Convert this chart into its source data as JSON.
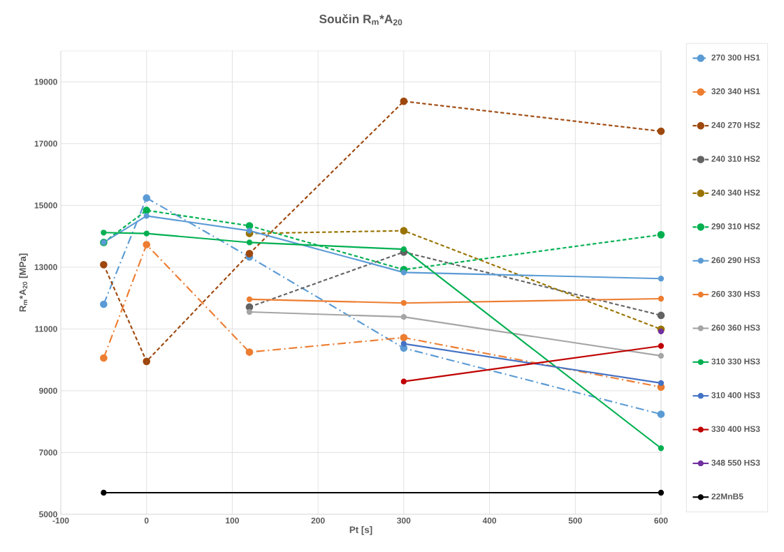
{
  "chart_data": {
    "type": "line",
    "title": "Součin R$_{m}$*A$_{20}$",
    "xlabel": "Pt [s]",
    "ylabel": "R$_{m}$*A$_{20}$ [MPa]",
    "xlim": [
      -100,
      600
    ],
    "ylim": [
      5000,
      20000
    ],
    "xticks": [
      -100,
      0,
      100,
      200,
      300,
      400,
      500,
      600
    ],
    "yticks": [
      5000,
      7000,
      9000,
      11000,
      13000,
      15000,
      17000,
      19000
    ],
    "grid": true,
    "legend": "right",
    "marker": "circle",
    "series": [
      {
        "name": "270 300 HS1",
        "color": "#5b9bd5",
        "line_style": "dashdot",
        "x": [
          -50,
          0,
          120,
          300,
          600
        ],
        "values": [
          11800,
          15240,
          13330,
          10380,
          8240
        ]
      },
      {
        "name": "320 340 HS1",
        "color": "#ed7d31",
        "line_style": "dashdot",
        "x": [
          -50,
          0,
          120,
          300,
          600
        ],
        "values": [
          10060,
          13730,
          10250,
          10720,
          9120
        ]
      },
      {
        "name": "240 270 HS2",
        "color": "#9e480e",
        "line_style": "dashed",
        "x": [
          -50,
          0,
          120,
          300,
          600
        ],
        "values": [
          13080,
          9950,
          13440,
          18370,
          17400
        ]
      },
      {
        "name": "240 310 HS2",
        "color": "#636363",
        "line_style": "dashed",
        "x": [
          120,
          300,
          600
        ],
        "values": [
          11710,
          13490,
          11440
        ]
      },
      {
        "name": "240 340 HS2",
        "color": "#997300",
        "line_style": "dashed",
        "x": [
          120,
          300,
          600
        ],
        "values": [
          14090,
          14180,
          10990
        ]
      },
      {
        "name": "290 310 HS2",
        "color": "#00b050",
        "line_style": "dashed",
        "x": [
          -50,
          0,
          120,
          300,
          600
        ],
        "values": [
          13800,
          14840,
          14340,
          12920,
          14050
        ]
      },
      {
        "name": "260 290 HS3",
        "color": "#5b9bd5",
        "line_style": "solid",
        "x": [
          -50,
          0,
          120,
          300,
          600
        ],
        "values": [
          13800,
          14660,
          14180,
          12830,
          12630
        ]
      },
      {
        "name": "260 330 HS3",
        "color": "#ed7d31",
        "line_style": "solid",
        "x": [
          120,
          300,
          600
        ],
        "values": [
          11960,
          11840,
          11980
        ]
      },
      {
        "name": "260 360 HS3",
        "color": "#a5a5a5",
        "line_style": "solid",
        "x": [
          120,
          300,
          600
        ],
        "values": [
          11550,
          11390,
          10130
        ]
      },
      {
        "name": "310 330 HS3",
        "color": "#00b050",
        "line_style": "solid",
        "x": [
          -50,
          0,
          120,
          300,
          600
        ],
        "values": [
          14120,
          14090,
          13800,
          13580,
          7140
        ]
      },
      {
        "name": "310 400 HS3",
        "color": "#4472c4",
        "line_style": "solid",
        "x": [
          300,
          600
        ],
        "values": [
          10520,
          9250
        ]
      },
      {
        "name": "330 400 HS3",
        "color": "#c00000",
        "line_style": "solid",
        "x": [
          300,
          600
        ],
        "values": [
          9300,
          10450
        ]
      },
      {
        "name": "348 550 HS3",
        "color": "#7030a0",
        "line_style": "solid",
        "x": [
          600
        ],
        "values": [
          10920
        ]
      },
      {
        "name": "22MnB5",
        "color": "#000000",
        "line_style": "solid",
        "x": [
          -50,
          600
        ],
        "values": [
          5700,
          5700
        ]
      }
    ]
  }
}
